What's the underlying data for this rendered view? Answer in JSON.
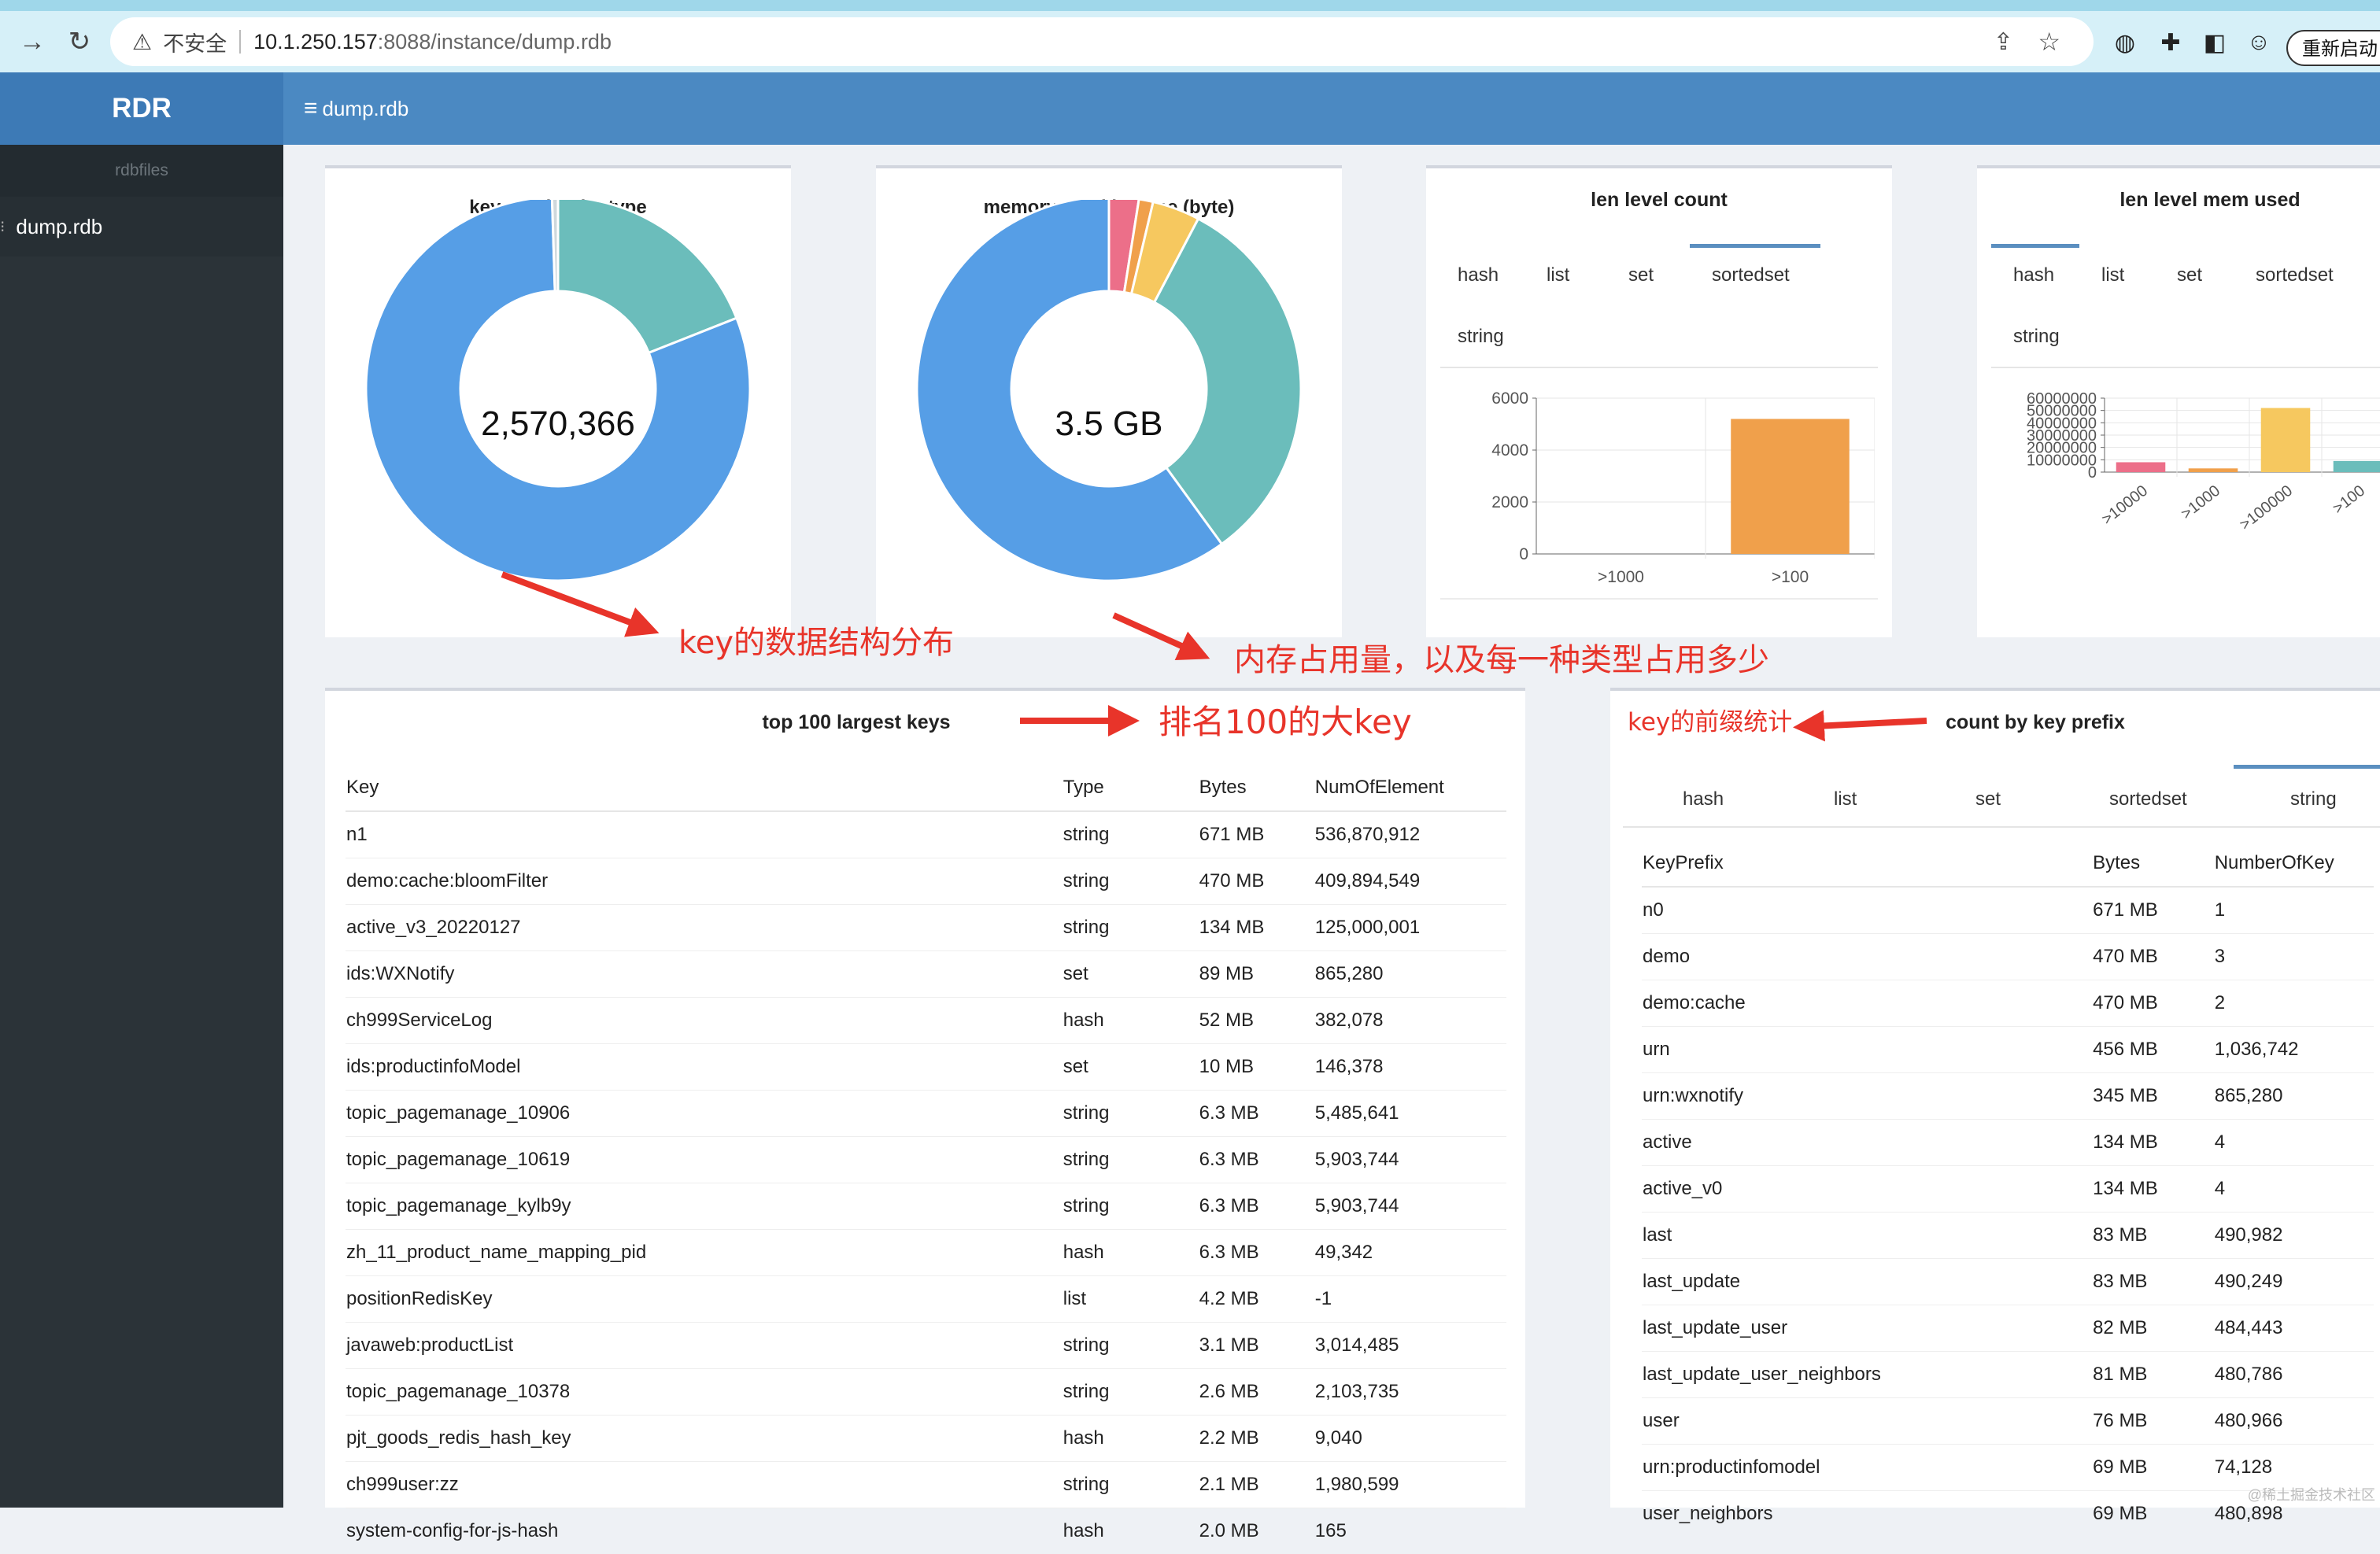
{
  "browser": {
    "nav_back_icon": "arrow-right-icon",
    "reload_icon": "reload-icon",
    "security_label": "不安全",
    "url_host": "10.1.250.157",
    "url_rest": ":8088/instance/dump.rdb",
    "restart_button": "重新启动"
  },
  "app": {
    "brand": "RDR",
    "sidebar_heading": "rdbfiles",
    "sidebar_items": [
      {
        "label": "dump.rdb"
      }
    ],
    "topbar_crumb": "dump.rdb"
  },
  "colors": {
    "blue": "#569ee6",
    "teal": "#6bbdbb",
    "pink": "#ec6f89",
    "orange": "#f0a04b",
    "yellow": "#f6c85f",
    "accent": "#e8342a"
  },
  "cards": {
    "key_number": {
      "title": "key number by type",
      "center": "2,570,366"
    },
    "memory_used": {
      "title": "memory used by type (byte)",
      "center": "3.5 GB"
    },
    "len_level_count": {
      "title": "len level count",
      "tabs": [
        "hash",
        "list",
        "set",
        "sortedset",
        "string"
      ],
      "active_tab": "sortedset"
    },
    "len_level_mem": {
      "title": "len level mem used",
      "tabs": [
        "hash",
        "list",
        "set",
        "sortedset",
        "string"
      ],
      "active_tab": "hash"
    },
    "top_keys": {
      "title": "top 100 largest keys",
      "columns": [
        "Key",
        "Type",
        "Bytes",
        "NumOfElement"
      ],
      "rows": [
        [
          "n1",
          "string",
          "671 MB",
          "536,870,912"
        ],
        [
          "demo:cache:bloomFilter",
          "string",
          "470 MB",
          "409,894,549"
        ],
        [
          "active_v3_20220127",
          "string",
          "134 MB",
          "125,000,001"
        ],
        [
          "ids:WXNotify",
          "set",
          "89 MB",
          "865,280"
        ],
        [
          "ch999ServiceLog",
          "hash",
          "52 MB",
          "382,078"
        ],
        [
          "ids:productinfoModel",
          "set",
          "10 MB",
          "146,378"
        ],
        [
          "topic_pagemanage_10906",
          "string",
          "6.3 MB",
          "5,485,641"
        ],
        [
          "topic_pagemanage_10619",
          "string",
          "6.3 MB",
          "5,903,744"
        ],
        [
          "topic_pagemanage_kylb9y",
          "string",
          "6.3 MB",
          "5,903,744"
        ],
        [
          "zh_11_product_name_mapping_pid",
          "hash",
          "6.3 MB",
          "49,342"
        ],
        [
          "positionRedisKey",
          "list",
          "4.2 MB",
          "-1"
        ],
        [
          "javaweb:productList",
          "string",
          "3.1 MB",
          "3,014,485"
        ],
        [
          "topic_pagemanage_10378",
          "string",
          "2.6 MB",
          "2,103,735"
        ],
        [
          "pjt_goods_redis_hash_key",
          "hash",
          "2.2 MB",
          "9,040"
        ],
        [
          "ch999user:zz",
          "string",
          "2.1 MB",
          "1,980,599"
        ],
        [
          "system-config-for-js-hash",
          "hash",
          "2.0 MB",
          "165"
        ]
      ]
    },
    "prefix": {
      "title": "count by key prefix",
      "tabs": [
        "hash",
        "list",
        "set",
        "sortedset",
        "string"
      ],
      "active_tab": "string",
      "columns": [
        "KeyPrefix",
        "Bytes",
        "NumberOfKey"
      ],
      "rows": [
        [
          "n0",
          "671 MB",
          "1"
        ],
        [
          "demo",
          "470 MB",
          "3"
        ],
        [
          "demo:cache",
          "470 MB",
          "2"
        ],
        [
          "urn",
          "456 MB",
          "1,036,742"
        ],
        [
          "urn:wxnotify",
          "345 MB",
          "865,280"
        ],
        [
          "active",
          "134 MB",
          "4"
        ],
        [
          "active_v0",
          "134 MB",
          "4"
        ],
        [
          "last",
          "83 MB",
          "490,982"
        ],
        [
          "last_update",
          "83 MB",
          "490,249"
        ],
        [
          "last_update_user",
          "82 MB",
          "484,443"
        ],
        [
          "last_update_user_neighbors",
          "81 MB",
          "480,786"
        ],
        [
          "user",
          "76 MB",
          "480,966"
        ],
        [
          "urn:productinfomodel",
          "69 MB",
          "74,128"
        ],
        [
          "user_neighbors",
          "69 MB",
          "480,898"
        ]
      ]
    }
  },
  "annotations": {
    "key_dist": "key的数据结构分布",
    "mem": "内存占用量，以及每一种类型占用多少",
    "top100": "排名100的大key",
    "prefix": "key的前缀统计"
  },
  "chart_data": [
    {
      "type": "pie",
      "title": "key number by type",
      "center_label": "2,570,366",
      "slices": [
        {
          "color": "#6bbdbb",
          "fraction": 0.19
        },
        {
          "color": "#569ee6",
          "fraction": 0.805
        },
        {
          "color": "#cfd8dc",
          "fraction": 0.005
        }
      ]
    },
    {
      "type": "pie",
      "title": "memory used by type (byte)",
      "center_label": "3.5 GB",
      "slices": [
        {
          "color": "#ec6f89",
          "fraction": 0.025
        },
        {
          "color": "#f0a04b",
          "fraction": 0.012
        },
        {
          "color": "#f6c85f",
          "fraction": 0.04
        },
        {
          "color": "#6bbdbb",
          "fraction": 0.323
        },
        {
          "color": "#569ee6",
          "fraction": 0.6
        }
      ]
    },
    {
      "type": "bar",
      "title": "len level count",
      "categories": [
        ">1000",
        ">100"
      ],
      "values": [
        0,
        5200
      ],
      "ylim": [
        0,
        6000
      ],
      "yticks": [
        0,
        2000,
        4000,
        6000
      ],
      "colors": [
        "#f0a04b",
        "#f0a04b"
      ]
    },
    {
      "type": "bar",
      "title": "len level mem used",
      "categories": [
        ">10000",
        ">1000",
        ">100000",
        ">100"
      ],
      "values": [
        8000000,
        3000000,
        52000000,
        9000000
      ],
      "ylim": [
        0,
        60000000
      ],
      "yticks": [
        0,
        10000000,
        20000000,
        30000000,
        40000000,
        50000000,
        60000000
      ],
      "colors": [
        "#ec6f89",
        "#f0a04b",
        "#f6c85f",
        "#6bbdbb"
      ]
    }
  ],
  "watermark": "@稀土掘金技术社区"
}
